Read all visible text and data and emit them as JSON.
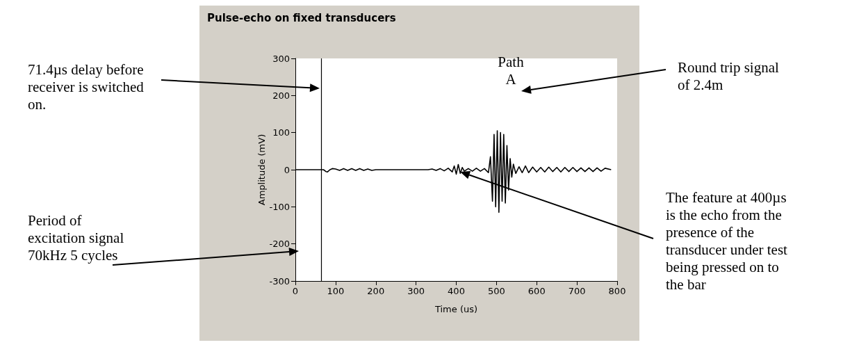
{
  "chart_data": {
    "type": "line",
    "title": "Pulse-echo on fixed transducers",
    "xlabel": "Time (us)",
    "ylabel": "Amplitude (mV)",
    "x": [
      0,
      70,
      76,
      80,
      86,
      92,
      100,
      110,
      120,
      130,
      140,
      150,
      160,
      170,
      180,
      190,
      200,
      250,
      300,
      330,
      340,
      350,
      360,
      370,
      380,
      390,
      395,
      400,
      405,
      410,
      415,
      420,
      430,
      440,
      450,
      460,
      470,
      480,
      485,
      490,
      494,
      498,
      502,
      506,
      510,
      514,
      518,
      522,
      526,
      530,
      534,
      538,
      542,
      548,
      556,
      564,
      572,
      580,
      590,
      600,
      610,
      620,
      630,
      640,
      650,
      660,
      670,
      680,
      690,
      700,
      710,
      720,
      730,
      740,
      750,
      760,
      770,
      785
    ],
    "values": [
      0,
      0,
      -5,
      -6,
      0,
      3,
      2,
      -2,
      3,
      -2,
      3,
      -2,
      3,
      -2,
      2,
      -2,
      0,
      0,
      0,
      0,
      2,
      -2,
      3,
      -3,
      4,
      -6,
      10,
      -12,
      14,
      -10,
      6,
      -4,
      3,
      -4,
      4,
      -4,
      3,
      -8,
      35,
      -85,
      95,
      -100,
      105,
      -115,
      100,
      -85,
      95,
      -90,
      65,
      -55,
      30,
      -20,
      15,
      -10,
      8,
      -8,
      10,
      -8,
      7,
      -6,
      6,
      -6,
      7,
      -5,
      6,
      -6,
      6,
      -5,
      6,
      -5,
      5,
      -5,
      5,
      -5,
      5,
      -4,
      4,
      0
    ],
    "color": "#000000",
    "xlim": [
      0,
      800
    ],
    "xticks": [
      0,
      100,
      200,
      300,
      400,
      500,
      600,
      700,
      800
    ],
    "ylim": [
      -300,
      300
    ],
    "yticks": [
      -300,
      -200,
      -100,
      0,
      100,
      200,
      300
    ],
    "grid": false,
    "marker": "none",
    "line_style": "solid",
    "ref_lines": [
      {
        "axis": "x",
        "value": 64,
        "color": "#000000"
      }
    ],
    "annotations": [
      "71.4µs delay before receiver is switched on.",
      "Period of excitation signal 70kHz 5 cycles",
      "Round trip signal of 2.4m",
      "The feature at 400µs is the echo from the presence of the transducer under test being pressed on to the bar",
      "Path\nA"
    ]
  }
}
